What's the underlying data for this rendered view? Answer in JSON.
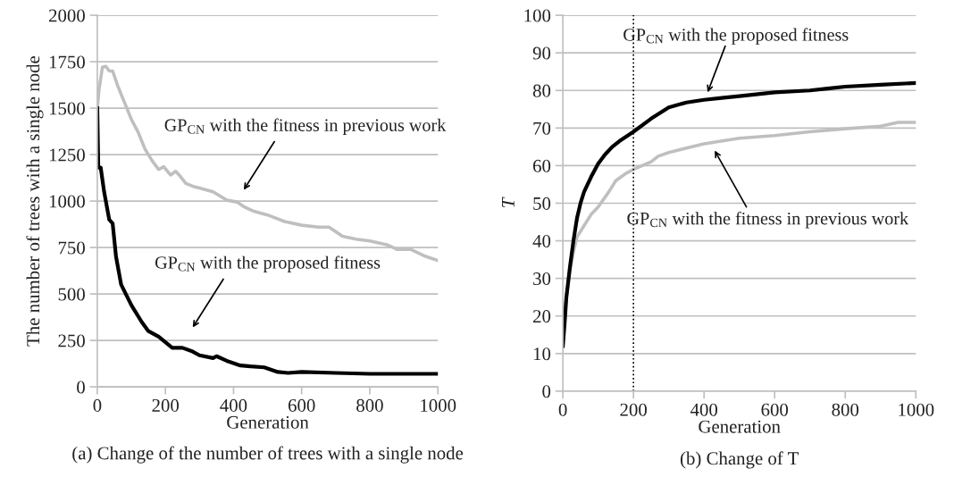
{
  "chart_data": [
    {
      "type": "line",
      "title": "(a) Change of the number of trees with a single node",
      "xlabel": "Generation",
      "ylabel": "The number of trees with a single node",
      "xlim": [
        0,
        1000
      ],
      "xticks": [
        0,
        200,
        400,
        600,
        800,
        1000
      ],
      "ylim": [
        0,
        2000
      ],
      "yticks": [
        0,
        250,
        500,
        750,
        1000,
        1250,
        1500,
        1750,
        2000
      ],
      "grid": "y",
      "legend": false,
      "series": [
        {
          "color": "#bfbfbf",
          "x": [
            0,
            5,
            15,
            25,
            35,
            45,
            60,
            80,
            100,
            120,
            140,
            160,
            180,
            195,
            215,
            230,
            245,
            260,
            280,
            300,
            340,
            380,
            410,
            430,
            460,
            500,
            550,
            600,
            650,
            680,
            720,
            760,
            800,
            850,
            880,
            920,
            960,
            1000
          ],
          "values": [
            1500,
            1600,
            1720,
            1725,
            1700,
            1700,
            1620,
            1530,
            1440,
            1370,
            1280,
            1220,
            1170,
            1185,
            1140,
            1160,
            1130,
            1095,
            1080,
            1070,
            1050,
            1005,
            995,
            970,
            945,
            925,
            890,
            870,
            860,
            860,
            810,
            795,
            785,
            765,
            740,
            740,
            705,
            680
          ]
        },
        {
          "color": "#000000",
          "x": [
            0,
            3,
            10,
            20,
            35,
            45,
            55,
            70,
            100,
            130,
            150,
            180,
            200,
            220,
            250,
            280,
            300,
            340,
            350,
            380,
            420,
            450,
            490,
            530,
            560,
            600,
            700,
            800,
            900,
            1000
          ],
          "values": [
            1500,
            1180,
            1180,
            1050,
            900,
            880,
            700,
            550,
            440,
            350,
            300,
            270,
            240,
            210,
            210,
            190,
            170,
            155,
            165,
            140,
            115,
            110,
            105,
            80,
            75,
            80,
            75,
            70,
            70,
            70
          ]
        }
      ],
      "annotations": [
        "GP$_{CN}$ with the fitness in previous work",
        "GP$_{CN}$ with the proposed fitness"
      ]
    },
    {
      "type": "line",
      "title": "(b) Change of T",
      "xlabel": "Generation",
      "ylabel": "T",
      "xlim": [
        0,
        1000
      ],
      "xticks": [
        0,
        200,
        400,
        600,
        800,
        1000
      ],
      "ylim": [
        0,
        100
      ],
      "yticks": [
        0,
        10,
        20,
        30,
        40,
        50,
        60,
        70,
        80,
        90,
        100
      ],
      "grid": "y",
      "legend": false,
      "series": [
        {
          "color": "#bfbfbf",
          "x": [
            0,
            10,
            20,
            30,
            40,
            60,
            80,
            100,
            130,
            150,
            180,
            200,
            250,
            270,
            300,
            400,
            500,
            600,
            700,
            800,
            900,
            950,
            1000
          ],
          "values": [
            17,
            25,
            32,
            37,
            41,
            44,
            47,
            49,
            53,
            56,
            58,
            59,
            61,
            62.5,
            63.5,
            65.8,
            67.3,
            68,
            69,
            69.8,
            70.5,
            71.5,
            71.5
          ]
        },
        {
          "color": "#000000",
          "x": [
            0,
            5,
            10,
            20,
            30,
            40,
            50,
            60,
            80,
            100,
            120,
            140,
            160,
            200,
            250,
            300,
            350,
            400,
            450,
            500,
            600,
            700,
            750,
            800,
            900,
            1000
          ],
          "values": [
            12,
            18,
            25,
            33,
            40,
            46,
            50,
            53,
            57,
            60.5,
            63,
            65,
            66.5,
            69,
            72.5,
            75.5,
            76.8,
            77.5,
            78,
            78.5,
            79.5,
            80,
            80.5,
            81,
            81.5,
            82
          ]
        }
      ],
      "ref_lines": [
        {
          "axis": "x",
          "value": 200,
          "line_style": "dotted",
          "color": "#000000"
        }
      ],
      "annotations": [
        "GP$_{CN}$ with the proposed fitness",
        "GP$_{CN}$ with the fitness in previous work"
      ]
    }
  ]
}
